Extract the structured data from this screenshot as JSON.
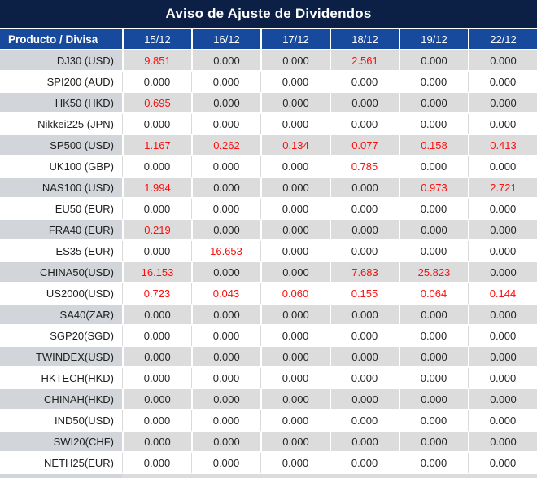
{
  "title": "Aviso de Ajuste de Dividendos",
  "chart_data": {
    "type": "table",
    "title": "Aviso de Ajuste de Dividendos",
    "columns": [
      "Producto / Divisa",
      "15/12",
      "16/12",
      "17/12",
      "18/12",
      "19/12",
      "22/12"
    ],
    "rows": [
      {
        "product": "DJ30 (USD)",
        "values": [
          "9.851",
          "0.000",
          "0.000",
          "2.561",
          "0.000",
          "0.000"
        ]
      },
      {
        "product": "SPI200 (AUD)",
        "values": [
          "0.000",
          "0.000",
          "0.000",
          "0.000",
          "0.000",
          "0.000"
        ]
      },
      {
        "product": "HK50 (HKD)",
        "values": [
          "0.695",
          "0.000",
          "0.000",
          "0.000",
          "0.000",
          "0.000"
        ]
      },
      {
        "product": "Nikkei225 (JPN)",
        "values": [
          "0.000",
          "0.000",
          "0.000",
          "0.000",
          "0.000",
          "0.000"
        ]
      },
      {
        "product": "SP500 (USD)",
        "values": [
          "1.167",
          "0.262",
          "0.134",
          "0.077",
          "0.158",
          "0.413"
        ]
      },
      {
        "product": "UK100 (GBP)",
        "values": [
          "0.000",
          "0.000",
          "0.000",
          "0.785",
          "0.000",
          "0.000"
        ]
      },
      {
        "product": "NAS100 (USD)",
        "values": [
          "1.994",
          "0.000",
          "0.000",
          "0.000",
          "0.973",
          "2.721"
        ]
      },
      {
        "product": "EU50 (EUR)",
        "values": [
          "0.000",
          "0.000",
          "0.000",
          "0.000",
          "0.000",
          "0.000"
        ]
      },
      {
        "product": "FRA40 (EUR)",
        "values": [
          "0.219",
          "0.000",
          "0.000",
          "0.000",
          "0.000",
          "0.000"
        ]
      },
      {
        "product": "ES35 (EUR)",
        "values": [
          "0.000",
          "16.653",
          "0.000",
          "0.000",
          "0.000",
          "0.000"
        ]
      },
      {
        "product": "CHINA50(USD)",
        "values": [
          "16.153",
          "0.000",
          "0.000",
          "7.683",
          "25.823",
          "0.000"
        ]
      },
      {
        "product": "US2000(USD)",
        "values": [
          "0.723",
          "0.043",
          "0.060",
          "0.155",
          "0.064",
          "0.144"
        ]
      },
      {
        "product": "SA40(ZAR)",
        "values": [
          "0.000",
          "0.000",
          "0.000",
          "0.000",
          "0.000",
          "0.000"
        ]
      },
      {
        "product": "SGP20(SGD)",
        "values": [
          "0.000",
          "0.000",
          "0.000",
          "0.000",
          "0.000",
          "0.000"
        ]
      },
      {
        "product": "TWINDEX(USD)",
        "values": [
          "0.000",
          "0.000",
          "0.000",
          "0.000",
          "0.000",
          "0.000"
        ]
      },
      {
        "product": "HKTECH(HKD)",
        "values": [
          "0.000",
          "0.000",
          "0.000",
          "0.000",
          "0.000",
          "0.000"
        ]
      },
      {
        "product": "CHINAH(HKD)",
        "values": [
          "0.000",
          "0.000",
          "0.000",
          "0.000",
          "0.000",
          "0.000"
        ]
      },
      {
        "product": "IND50(USD)",
        "values": [
          "0.000",
          "0.000",
          "0.000",
          "0.000",
          "0.000",
          "0.000"
        ]
      },
      {
        "product": "SWI20(CHF)",
        "values": [
          "0.000",
          "0.000",
          "0.000",
          "0.000",
          "0.000",
          "0.000"
        ]
      },
      {
        "product": "NETH25(EUR)",
        "values": [
          "0.000",
          "0.000",
          "0.000",
          "0.000",
          "0.000",
          "0.000"
        ]
      }
    ]
  },
  "colors": {
    "title_bg": "#0b2044",
    "header_bg": "#174a9d",
    "stripe_value_bg": "#dcdcdc",
    "stripe_product_bg": "#d2d5d9",
    "plain_row_bg": "#ffffff",
    "gridline": "#d9d9d9",
    "value_zero_text": "#262626",
    "value_nonzero_text": "#fb0f0f",
    "header_text": "#ffffff"
  }
}
